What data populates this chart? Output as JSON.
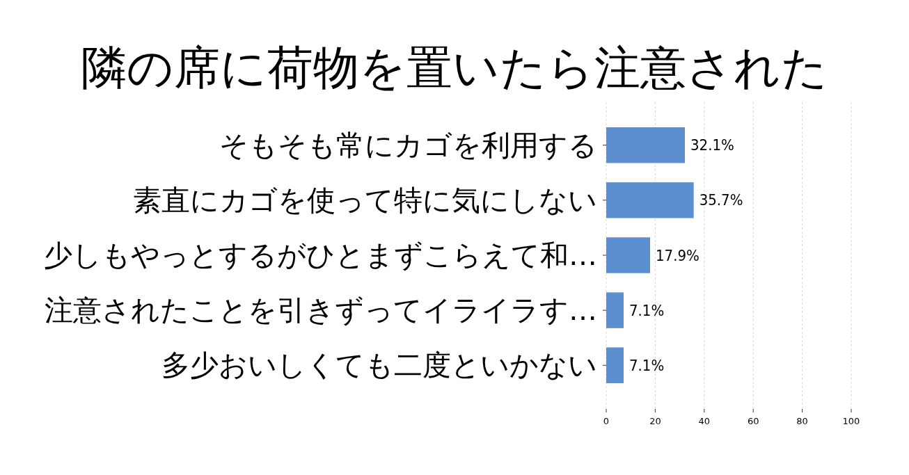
{
  "chart_data": {
    "type": "bar",
    "orientation": "horizontal",
    "title": "隣の席に荷物を置いたら注意された",
    "categories": [
      "そもそも常にカゴを利用する",
      "素直にカゴを使って特に気にしない",
      "少しもやっとするがひとまずこらえて和…",
      "注意されたことを引きずってイライラす…",
      "多少おいしくても二度といかない"
    ],
    "values": [
      32.1,
      35.7,
      17.9,
      7.1,
      7.1
    ],
    "value_labels": [
      "32.1%",
      "35.7%",
      "17.9%",
      "7.1%",
      "7.1%"
    ],
    "color": "#5b8fd0",
    "xlim": [
      0,
      100
    ],
    "xticks": [
      0,
      20,
      40,
      60,
      80,
      100
    ],
    "grid": "x"
  }
}
